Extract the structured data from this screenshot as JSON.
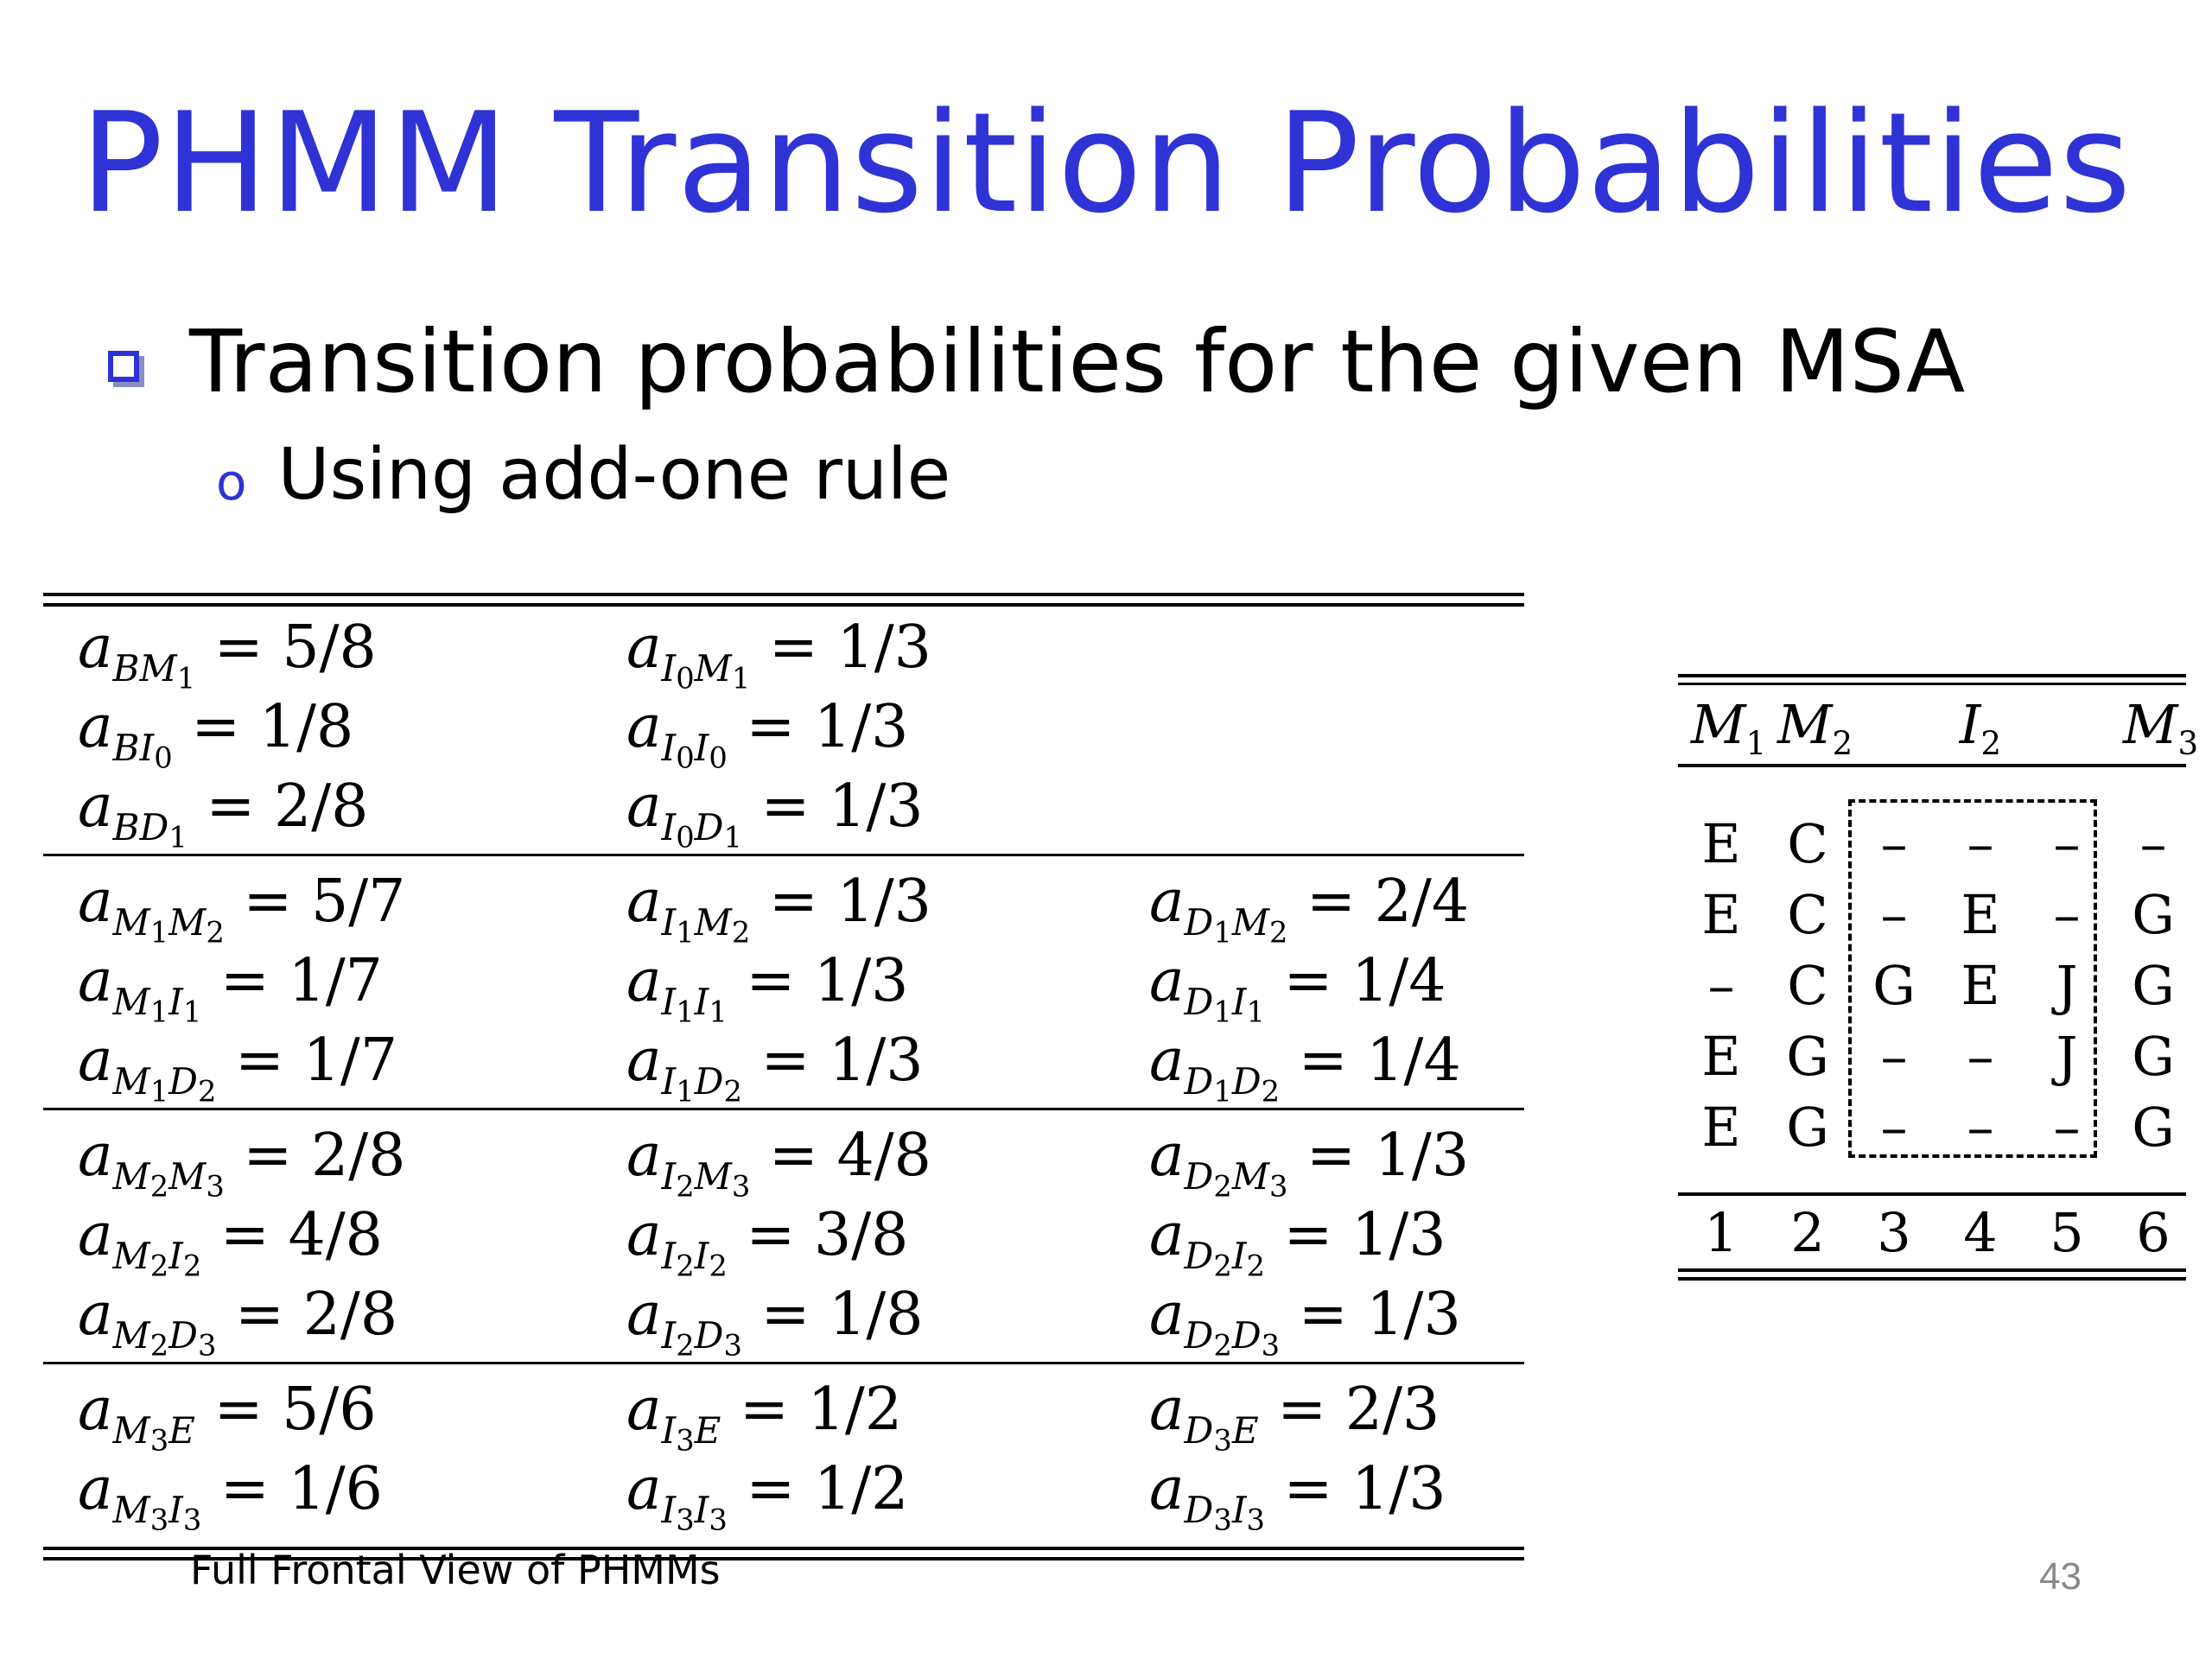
{
  "slide": {
    "title": "PHMM Transition Probabilities",
    "bullet": "Transition probabilities for the given MSA",
    "sub_marker": "o",
    "sub_bullet": "Using add-one rule",
    "footer": "Full Frontal View of PHMMs",
    "page_number": "43"
  },
  "transitions": {
    "groups": [
      [
        [
          {
            "from": "B",
            "from_sub": "",
            "to": "M",
            "to_sub": "1",
            "value": "5/8"
          },
          {
            "from": "I",
            "from_sub": "0",
            "to": "M",
            "to_sub": "1",
            "value": "1/3"
          },
          null
        ],
        [
          {
            "from": "B",
            "from_sub": "",
            "to": "I",
            "to_sub": "0",
            "value": "1/8"
          },
          {
            "from": "I",
            "from_sub": "0",
            "to": "I",
            "to_sub": "0",
            "value": "1/3"
          },
          null
        ],
        [
          {
            "from": "B",
            "from_sub": "",
            "to": "D",
            "to_sub": "1",
            "value": "2/8"
          },
          {
            "from": "I",
            "from_sub": "0",
            "to": "D",
            "to_sub": "1",
            "value": "1/3"
          },
          null
        ]
      ],
      [
        [
          {
            "from": "M",
            "from_sub": "1",
            "to": "M",
            "to_sub": "2",
            "value": "5/7"
          },
          {
            "from": "I",
            "from_sub": "1",
            "to": "M",
            "to_sub": "2",
            "value": "1/3"
          },
          {
            "from": "D",
            "from_sub": "1",
            "to": "M",
            "to_sub": "2",
            "value": "2/4"
          }
        ],
        [
          {
            "from": "M",
            "from_sub": "1",
            "to": "I",
            "to_sub": "1",
            "value": "1/7"
          },
          {
            "from": "I",
            "from_sub": "1",
            "to": "I",
            "to_sub": "1",
            "value": "1/3"
          },
          {
            "from": "D",
            "from_sub": "1",
            "to": "I",
            "to_sub": "1",
            "value": "1/4"
          }
        ],
        [
          {
            "from": "M",
            "from_sub": "1",
            "to": "D",
            "to_sub": "2",
            "value": "1/7"
          },
          {
            "from": "I",
            "from_sub": "1",
            "to": "D",
            "to_sub": "2",
            "value": "1/3"
          },
          {
            "from": "D",
            "from_sub": "1",
            "to": "D",
            "to_sub": "2",
            "value": "1/4"
          }
        ]
      ],
      [
        [
          {
            "from": "M",
            "from_sub": "2",
            "to": "M",
            "to_sub": "3",
            "value": "2/8"
          },
          {
            "from": "I",
            "from_sub": "2",
            "to": "M",
            "to_sub": "3",
            "value": "4/8"
          },
          {
            "from": "D",
            "from_sub": "2",
            "to": "M",
            "to_sub": "3",
            "value": "1/3"
          }
        ],
        [
          {
            "from": "M",
            "from_sub": "2",
            "to": "I",
            "to_sub": "2",
            "value": "4/8"
          },
          {
            "from": "I",
            "from_sub": "2",
            "to": "I",
            "to_sub": "2",
            "value": "3/8"
          },
          {
            "from": "D",
            "from_sub": "2",
            "to": "I",
            "to_sub": "2",
            "value": "1/3"
          }
        ],
        [
          {
            "from": "M",
            "from_sub": "2",
            "to": "D",
            "to_sub": "3",
            "value": "2/8"
          },
          {
            "from": "I",
            "from_sub": "2",
            "to": "D",
            "to_sub": "3",
            "value": "1/8"
          },
          {
            "from": "D",
            "from_sub": "2",
            "to": "D",
            "to_sub": "3",
            "value": "1/3"
          }
        ]
      ],
      [
        [
          {
            "from": "M",
            "from_sub": "3",
            "to": "E",
            "to_sub": "",
            "value": "5/6"
          },
          {
            "from": "I",
            "from_sub": "3",
            "to": "E",
            "to_sub": "",
            "value": "1/2"
          },
          {
            "from": "D",
            "from_sub": "3",
            "to": "E",
            "to_sub": "",
            "value": "2/3"
          }
        ],
        [
          {
            "from": "M",
            "from_sub": "3",
            "to": "I",
            "to_sub": "3",
            "value": "1/6"
          },
          {
            "from": "I",
            "from_sub": "3",
            "to": "I",
            "to_sub": "3",
            "value": "1/2"
          },
          {
            "from": "D",
            "from_sub": "3",
            "to": "I",
            "to_sub": "3",
            "value": "1/3"
          }
        ]
      ]
    ]
  },
  "msa": {
    "header": [
      {
        "col": 0,
        "letter": "M",
        "sub": "1"
      },
      {
        "col": 1,
        "letter": "M",
        "sub": "2"
      },
      {
        "col": 3,
        "letter": "I",
        "sub": "2"
      },
      {
        "col": 5,
        "letter": "M",
        "sub": "3"
      }
    ],
    "rows": [
      [
        "E",
        "C",
        "–",
        "–",
        "–",
        "–"
      ],
      [
        "E",
        "C",
        "–",
        "E",
        "–",
        "G"
      ],
      [
        "–",
        "C",
        "G",
        "E",
        "J",
        "G"
      ],
      [
        "E",
        "G",
        "–",
        "–",
        "J",
        "G"
      ],
      [
        "E",
        "G",
        "–",
        "–",
        "–",
        "G"
      ]
    ],
    "columns": [
      "1",
      "2",
      "3",
      "4",
      "5",
      "6"
    ]
  }
}
